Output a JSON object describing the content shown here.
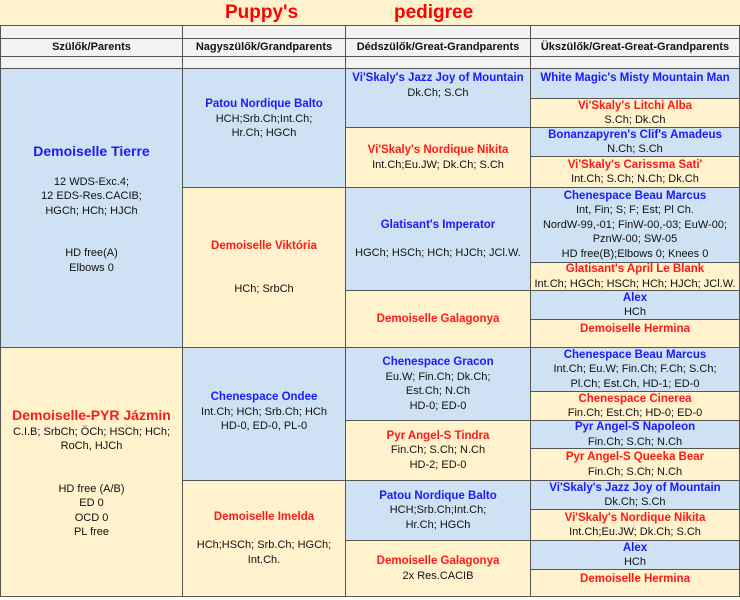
{
  "title": {
    "word1": "Puppy's",
    "word2": "pedigree"
  },
  "headers": [
    "Szülők/Parents",
    "Nagyszülők/Grandparents",
    "Dédszülők/Great-Grandparents",
    "Ükszülők/Great-Great-Grandparents"
  ],
  "colors": {
    "male": "#1a1aff",
    "female": "#ff1a1a",
    "blue_bg": "#cfe2f3",
    "yellow_bg": "#fff2cc"
  },
  "parents": [
    {
      "name": "Demoiselle Tierre",
      "lines": [
        "",
        "12 WDS-Exc.4;",
        "12 EDS-Res.CACIB;",
        "HGCh; HCh; HJCh",
        "",
        "",
        "HD free(A)",
        "Elbows 0"
      ]
    },
    {
      "name": "Demoiselle-PYR Jázmin",
      "lines": [
        "C.I.B; SrbCh; ÖCh; HSCh; HCh;",
        "RoCh, HJCh",
        "",
        "",
        "HD free (A/B)",
        "ED 0",
        "OCD 0",
        "PL free"
      ]
    }
  ],
  "grandparents": [
    {
      "name": "Patou Nordique Balto",
      "lines": [
        "HCH;Srb.Ch;Int.Ch;",
        "Hr.Ch; HGCh"
      ]
    },
    {
      "name": "Demoiselle Viktória",
      "lines": [
        "",
        "",
        "HCh; SrbCh"
      ]
    },
    {
      "name": "Chenespace Ondee",
      "lines": [
        "Int.Ch; HCh; Srb.Ch; HCh",
        "HD-0, ED-0, PL-0"
      ]
    },
    {
      "name": "Demoiselle Imelda",
      "lines": [
        "",
        "HCh;HSCh; Srb.Ch; HGCh;",
        "Int.Ch."
      ]
    }
  ],
  "great_grandparents": [
    {
      "name": "Vi'Skaly's Jazz Joy of Mountain",
      "lines": [
        "Dk.Ch; S.Ch"
      ]
    },
    {
      "name": "Vi'Skaly's Nordique Nikita",
      "lines": [
        "Int.Ch;Eu.JW; Dk.Ch; S.Ch"
      ]
    },
    {
      "name": "Glatisant's Imperator",
      "lines": [
        "",
        "HGCh; HSCh; HCh; HJCh; JCl.W."
      ]
    },
    {
      "name": "Demoiselle Galagonya",
      "lines": []
    },
    {
      "name": "Chenespace Gracon",
      "lines": [
        "Eu.W; Fin.Ch; Dk.Ch;",
        "Est.Ch; N.Ch",
        "HD-0; ED-0"
      ]
    },
    {
      "name": "Pyr Angel-S Tindra",
      "lines": [
        "Fin.Ch; S.Ch; N.Ch",
        "HD-2; ED-0"
      ]
    },
    {
      "name": "Patou Nordique Balto",
      "lines": [
        "HCH;Srb.Ch;Int.Ch;",
        "Hr.Ch; HGCh"
      ]
    },
    {
      "name": "Demoiselle Galagonya",
      "lines": [
        "2x Res.CACIB"
      ]
    }
  ],
  "great_great_grandparents": [
    {
      "name": "White Magic's Misty Mountain Man",
      "lines": []
    },
    {
      "name": "Vi'Skaly's Litchi Alba",
      "lines": [
        "S.Ch; Dk.Ch"
      ]
    },
    {
      "name": "Bonanzapyren's Clif's Amadeus",
      "lines": [
        "N.Ch; S.Ch"
      ]
    },
    {
      "name": "Vi'Skaly's Carissma Sati'",
      "lines": [
        "Int.Ch; S.Ch; N.Ch; Dk.Ch"
      ]
    },
    {
      "name": "Chenespace Beau Marcus",
      "lines": [
        "Int, Fin; S; F; Est; Pl Ch.",
        "NordW-99,-01; FinW-00,-03; EuW-00;",
        "PznW-00; SW-05",
        "HD free(B);Elbows 0; Knees 0"
      ]
    },
    {
      "name": "Glatisant's April Le Blank",
      "lines": [
        "Int.Ch; HGCh; HSCh; HCh; HJCh; JCl.W."
      ]
    },
    {
      "name": "Alex",
      "lines": [
        "HCh"
      ]
    },
    {
      "name": "Demoiselle Hermina",
      "lines": []
    },
    {
      "name": "Chenespace Beau Marcus",
      "lines": [
        "Int.Ch; Eu.W; Fin.Ch; F.Ch; S.Ch;",
        "Pl.Ch; Est.Ch,  HD-1; ED-0"
      ]
    },
    {
      "name": "Chenespace Cinerea",
      "lines": [
        "Fin.Ch; Est.Ch; HD-0; ED-0"
      ]
    },
    {
      "name": "Pyr Angel-S Napoleon",
      "lines": [
        "Fin.Ch; S.Ch; N.Ch"
      ]
    },
    {
      "name": "Pyr Angel-S Queeka Bear",
      "lines": [
        "Fin.Ch; S.Ch; N.Ch"
      ]
    },
    {
      "name": "Vi'Skaly's Jazz Joy of Mountain",
      "lines": [
        "Dk.Ch; S.Ch"
      ]
    },
    {
      "name": "Vi'Skaly's Nordique Nikita",
      "lines": [
        "Int.Ch;Eu.JW; Dk.Ch; S.Ch"
      ]
    },
    {
      "name": "Alex",
      "lines": [
        "HCh"
      ]
    },
    {
      "name": "Demoiselle Hermina",
      "lines": []
    }
  ]
}
